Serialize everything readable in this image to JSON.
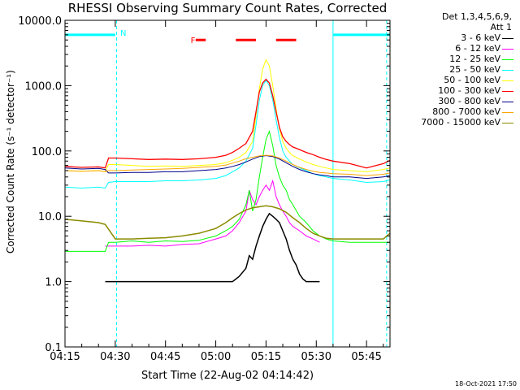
{
  "chart_data": {
    "type": "line",
    "title": "RHESSI Observing Summary Count Rates, Corrected",
    "xlabel": "Start Time (22-Aug-02 04:14:42)",
    "ylabel": "Corrected Count Rate (s⁻¹ detector⁻¹)",
    "yscale": "log",
    "ylim": [
      0.1,
      10000
    ],
    "xlim_minutes": [
      0,
      97
    ],
    "xticks": [
      {
        "minute": 0,
        "label": "04:15"
      },
      {
        "minute": 15,
        "label": "04:30"
      },
      {
        "minute": 30,
        "label": "04:45"
      },
      {
        "minute": 45,
        "label": "05:00"
      },
      {
        "minute": 60,
        "label": "05:15"
      },
      {
        "minute": 75,
        "label": "05:30"
      },
      {
        "minute": 90,
        "label": "05:45"
      }
    ],
    "yticks": [
      {
        "value": 0.1,
        "label": "0.1"
      },
      {
        "value": 1,
        "label": "1.0"
      },
      {
        "value": 10,
        "label": "10.0"
      },
      {
        "value": 100,
        "label": "100.0"
      },
      {
        "value": 1000,
        "label": "1000.0"
      },
      {
        "value": 10000,
        "label": "10000.0"
      }
    ],
    "legend_header": [
      "Det 1,3,4,5,6,9,",
      "Att 1"
    ],
    "legend_placement": "right",
    "series": [
      {
        "name": "3 - 6 keV",
        "color": "#000000",
        "width": 1.5,
        "x": [
          12,
          30,
          40,
          48,
          50,
          52,
          54,
          55,
          56,
          57,
          58,
          59,
          60,
          61,
          62,
          63,
          64,
          65,
          66,
          67,
          68,
          69,
          70,
          71,
          72,
          74,
          76
        ],
        "y": [
          1.0,
          1.0,
          1.0,
          1.0,
          1.0,
          1.2,
          1.6,
          2.5,
          2.2,
          3.5,
          5,
          7,
          9,
          11,
          10,
          9,
          8,
          6,
          4.5,
          3,
          2.2,
          1.8,
          1.3,
          1.1,
          1.0,
          1.0,
          1.0
        ]
      },
      {
        "name": "6 - 12 keV",
        "color": "#ff00ff",
        "width": 1,
        "x": [
          12,
          15,
          20,
          25,
          30,
          35,
          40,
          45,
          48,
          50,
          52,
          54,
          55,
          56,
          57,
          58,
          59,
          60,
          61,
          62,
          63,
          64,
          65,
          66,
          67,
          68,
          70,
          72,
          74,
          76
        ],
        "y": [
          3.5,
          3.5,
          3.5,
          3.6,
          3.5,
          3.7,
          3.8,
          4.5,
          5,
          6,
          8,
          12,
          25,
          18,
          15,
          20,
          25,
          30,
          25,
          35,
          20,
          15,
          12,
          10,
          8,
          7,
          6,
          5,
          4.5,
          4
        ]
      },
      {
        "name": "12 - 25 keV",
        "color": "#00ff00",
        "width": 1,
        "x": [
          0,
          12,
          13,
          15,
          20,
          25,
          30,
          35,
          40,
          45,
          48,
          50,
          52,
          54,
          55,
          56,
          57,
          58,
          59,
          60,
          61,
          62,
          63,
          64,
          65,
          66,
          67,
          68,
          70,
          72,
          74,
          76,
          78,
          80,
          85,
          90,
          95,
          97
        ],
        "y": [
          2.9,
          2.9,
          4,
          4,
          4.2,
          4,
          4.2,
          4.1,
          4.3,
          5,
          6,
          7,
          9,
          15,
          25,
          12,
          18,
          40,
          80,
          150,
          200,
          120,
          60,
          40,
          30,
          25,
          18,
          15,
          10,
          8,
          6,
          5,
          4.5,
          4.2,
          4,
          4,
          4,
          4
        ]
      },
      {
        "name": "25 - 50 keV",
        "color": "#00ffff",
        "width": 1,
        "x": [
          0,
          5,
          10,
          12,
          13,
          15,
          20,
          25,
          30,
          35,
          40,
          45,
          48,
          50,
          52,
          54,
          56,
          57,
          58,
          59,
          60,
          61,
          62,
          63,
          64,
          65,
          66,
          67,
          68,
          70,
          72,
          74,
          76,
          78,
          80,
          85,
          90,
          95,
          97
        ],
        "y": [
          28,
          27,
          28,
          27,
          33,
          34,
          34,
          34,
          35,
          35,
          36,
          38,
          42,
          48,
          55,
          70,
          110,
          250,
          600,
          1000,
          1200,
          1000,
          600,
          300,
          160,
          100,
          80,
          70,
          62,
          55,
          50,
          45,
          42,
          40,
          38,
          36,
          33,
          34,
          36
        ]
      },
      {
        "name": "50 - 100 keV",
        "color": "#ffff00",
        "width": 1,
        "x": [
          0,
          5,
          10,
          12,
          13,
          15,
          20,
          25,
          30,
          35,
          40,
          45,
          48,
          50,
          52,
          54,
          56,
          57,
          58,
          59,
          60,
          61,
          62,
          63,
          64,
          65,
          66,
          67,
          68,
          70,
          72,
          74,
          76,
          78,
          80,
          85,
          90,
          95,
          97
        ],
        "y": [
          50,
          49,
          50,
          48,
          62,
          62,
          60,
          58,
          59,
          58,
          60,
          62,
          66,
          72,
          80,
          95,
          140,
          350,
          900,
          1800,
          2500,
          2000,
          1000,
          450,
          220,
          140,
          110,
          95,
          85,
          75,
          68,
          62,
          58,
          55,
          52,
          50,
          48,
          52,
          55
        ]
      },
      {
        "name": "100 - 300 keV",
        "color": "#ff0000",
        "width": 1.3,
        "x": [
          0,
          5,
          10,
          12,
          13,
          15,
          20,
          25,
          30,
          35,
          40,
          45,
          48,
          50,
          52,
          54,
          56,
          57,
          58,
          59,
          60,
          61,
          62,
          63,
          64,
          65,
          66,
          67,
          68,
          70,
          72,
          74,
          76,
          78,
          80,
          85,
          90,
          95,
          97
        ],
        "y": [
          58,
          56,
          57,
          55,
          78,
          78,
          76,
          74,
          75,
          74,
          76,
          80,
          86,
          95,
          110,
          130,
          200,
          400,
          800,
          1100,
          1250,
          1100,
          700,
          400,
          230,
          165,
          140,
          125,
          115,
          105,
          95,
          88,
          80,
          74,
          70,
          64,
          55,
          64,
          72
        ]
      },
      {
        "name": "300 - 800 keV",
        "color": "#00008b",
        "width": 1,
        "x": [
          0,
          5,
          10,
          12,
          13,
          15,
          20,
          25,
          30,
          35,
          40,
          45,
          48,
          50,
          52,
          54,
          56,
          58,
          60,
          62,
          64,
          66,
          68,
          70,
          72,
          74,
          76,
          78,
          80,
          85,
          90,
          95,
          97
        ],
        "y": [
          55,
          53,
          54,
          52,
          46,
          46,
          47,
          47,
          48,
          48,
          50,
          52,
          55,
          58,
          62,
          68,
          75,
          82,
          85,
          82,
          75,
          66,
          58,
          52,
          48,
          45,
          43,
          42,
          40,
          40,
          38,
          40,
          42
        ]
      },
      {
        "name": "800 - 7000 keV",
        "color": "#ffa500",
        "width": 1,
        "x": [
          0,
          5,
          10,
          12,
          13,
          15,
          20,
          25,
          30,
          35,
          40,
          45,
          48,
          50,
          52,
          54,
          56,
          58,
          60,
          62,
          64,
          66,
          68,
          70,
          72,
          74,
          76,
          78,
          80,
          85,
          90,
          95,
          97
        ],
        "y": [
          50,
          49,
          50,
          48,
          50,
          50,
          51,
          52,
          53,
          54,
          56,
          58,
          61,
          65,
          70,
          76,
          80,
          84,
          86,
          84,
          78,
          70,
          62,
          56,
          52,
          49,
          47,
          46,
          45,
          44,
          42,
          44,
          46
        ]
      },
      {
        "name": "7000 - 15000 keV",
        "color": "#8b8b00",
        "width": 1.5,
        "x": [
          0,
          5,
          10,
          12,
          15,
          20,
          25,
          30,
          35,
          40,
          45,
          48,
          50,
          52,
          54,
          56,
          58,
          60,
          62,
          64,
          66,
          68,
          70,
          72,
          74,
          76,
          78,
          80,
          85,
          90,
          95,
          97
        ],
        "y": [
          9,
          8.5,
          8,
          7.5,
          4.5,
          4.5,
          4.6,
          4.7,
          5,
          5.5,
          6.5,
          8,
          9.5,
          11,
          12.5,
          13.5,
          14,
          14.5,
          14,
          13,
          11.5,
          9.5,
          8,
          6.5,
          5.5,
          5,
          4.6,
          4.5,
          4.5,
          4.5,
          4.5,
          5.5
        ]
      }
    ],
    "annotations": [
      {
        "label": "N",
        "color": "#00ffff",
        "minute": 16.5,
        "value": 6500
      },
      {
        "label": "F",
        "color": "#ff0000",
        "minute": 37.5,
        "value": 5000
      }
    ],
    "night_intervals": [
      {
        "start": 0,
        "end": 15,
        "value": 6000
      },
      {
        "start": 80,
        "end": 97,
        "value": 6000
      }
    ],
    "flare_intervals": [
      {
        "start": 39,
        "end": 42
      },
      {
        "start": 51,
        "end": 57
      },
      {
        "start": 63,
        "end": 69
      }
    ],
    "vertical_markers": [
      {
        "minute": 15.4,
        "style": "dashed",
        "color": "#00ffff"
      },
      {
        "minute": 80,
        "style": "solid",
        "color": "#00ffff"
      },
      {
        "minute": 96,
        "style": "dashed",
        "color": "#00ffff"
      }
    ]
  },
  "footer": {
    "timestamp": "18-Oct-2021 17:50"
  }
}
